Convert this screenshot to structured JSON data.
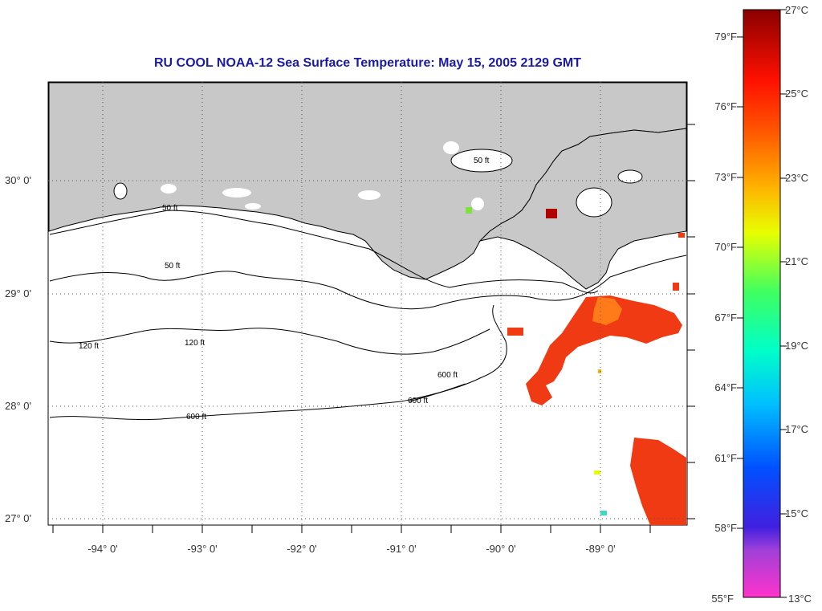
{
  "title": "RU COOL  NOAA-12  Sea Surface Temperature:  May 15, 2005 2129 GMT",
  "lat_labels": [
    "30° 0'",
    "29° 0'",
    "28° 0'",
    "27° 0'"
  ],
  "lon_labels": [
    "-94° 0'",
    "-93° 0'",
    "-92° 0'",
    "-91° 0'",
    "-90° 0'",
    "-89° 0'"
  ],
  "contour_labels": [
    "50 ft",
    "50 ft",
    "50 ft",
    "120 ft",
    "120 ft",
    "600 ft",
    "600 ft",
    "600 ft"
  ],
  "colorbar": {
    "f_labels": [
      "79°F",
      "76°F",
      "73°F",
      "70°F",
      "67°F",
      "64°F",
      "61°F",
      "58°F",
      "55°F"
    ],
    "c_labels": [
      "27°C",
      "25°C",
      "23°C",
      "21°C",
      "19°C",
      "17°C",
      "15°C",
      "13°C"
    ]
  },
  "colors": {
    "land": "#c8c8c8",
    "title": "#1a1aa8",
    "sst_warm": "#f02a10"
  }
}
